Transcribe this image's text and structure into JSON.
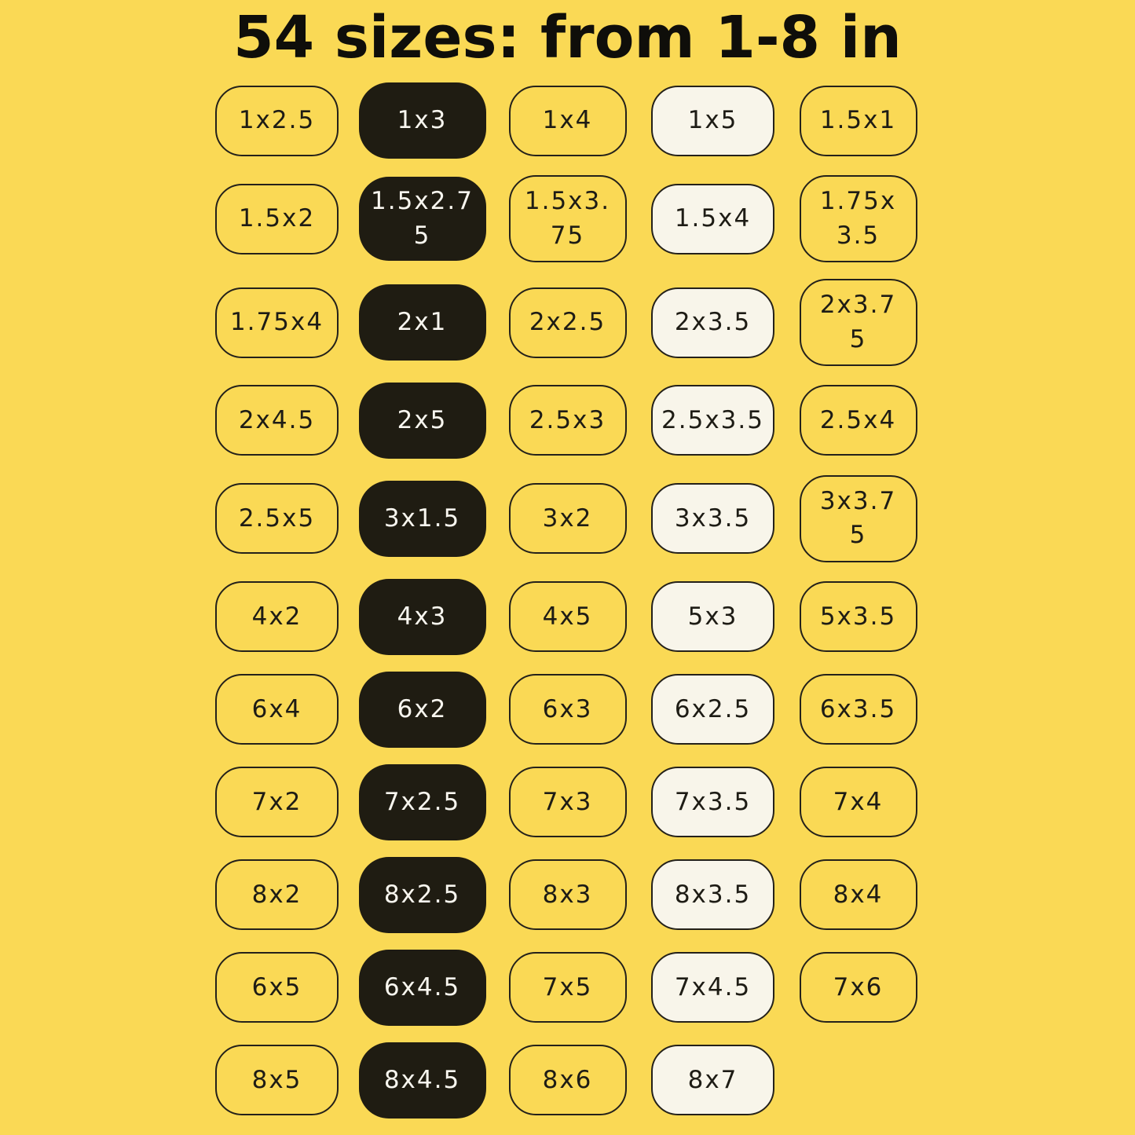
{
  "title": "54 sizes: from 1-8 in",
  "unit": "in",
  "size_range": "1-8",
  "total_sizes": 54,
  "colors": {
    "background": "#FAD955",
    "title_text": "#0F0E0A",
    "label_text": "#1E1C15",
    "outline_border": "#24211A",
    "dark_fill": "#1F1C12",
    "dark_text": "#F8F6EF",
    "cream_fill": "#F8F5EA"
  },
  "sizes_grid": {
    "rows": [
      {
        "cells": [
          {
            "label": "1x2.5",
            "style": "outline"
          },
          {
            "label": "1x3",
            "style": "dark"
          },
          {
            "label": "1x4",
            "style": "outline"
          },
          {
            "label": "1x5",
            "style": "cream"
          },
          {
            "label": "1.5x1",
            "style": "outline"
          }
        ]
      },
      {
        "cells": [
          {
            "label": "1.5x2",
            "style": "outline"
          },
          {
            "label": "1.5x2.75",
            "style": "dark"
          },
          {
            "label": "1.5x3.75",
            "style": "outline"
          },
          {
            "label": "1.5x4",
            "style": "cream"
          },
          {
            "label": "1.75x3.5",
            "style": "outline"
          }
        ]
      },
      {
        "cells": [
          {
            "label": "1.75x4",
            "style": "outline"
          },
          {
            "label": "2x1",
            "style": "dark"
          },
          {
            "label": "2x2.5",
            "style": "outline"
          },
          {
            "label": "2x3.5",
            "style": "cream"
          },
          {
            "label": "2x3.75",
            "style": "outline"
          }
        ]
      },
      {
        "cells": [
          {
            "label": "2x4.5",
            "style": "outline"
          },
          {
            "label": "2x5",
            "style": "dark"
          },
          {
            "label": "2.5x3",
            "style": "outline"
          },
          {
            "label": "2.5x3.5",
            "style": "cream"
          },
          {
            "label": "2.5x4",
            "style": "outline"
          }
        ]
      },
      {
        "cells": [
          {
            "label": "2.5x5",
            "style": "outline"
          },
          {
            "label": "3x1.5",
            "style": "dark"
          },
          {
            "label": "3x2",
            "style": "outline"
          },
          {
            "label": "3x3.5",
            "style": "cream"
          },
          {
            "label": "3x3.75",
            "style": "outline"
          }
        ]
      },
      {
        "cells": [
          {
            "label": "4x2",
            "style": "outline"
          },
          {
            "label": "4x3",
            "style": "dark"
          },
          {
            "label": "4x5",
            "style": "outline"
          },
          {
            "label": "5x3",
            "style": "cream"
          },
          {
            "label": "5x3.5",
            "style": "outline"
          }
        ]
      },
      {
        "cells": [
          {
            "label": "6x4",
            "style": "outline"
          },
          {
            "label": "6x2",
            "style": "dark"
          },
          {
            "label": "6x3",
            "style": "outline"
          },
          {
            "label": "6x2.5",
            "style": "cream"
          },
          {
            "label": "6x3.5",
            "style": "outline"
          }
        ]
      },
      {
        "cells": [
          {
            "label": "7x2",
            "style": "outline"
          },
          {
            "label": "7x2.5",
            "style": "dark"
          },
          {
            "label": "7x3",
            "style": "outline"
          },
          {
            "label": "7x3.5",
            "style": "cream"
          },
          {
            "label": "7x4",
            "style": "outline"
          }
        ]
      },
      {
        "cells": [
          {
            "label": "8x2",
            "style": "outline"
          },
          {
            "label": "8x2.5",
            "style": "dark"
          },
          {
            "label": "8x3",
            "style": "outline"
          },
          {
            "label": "8x3.5",
            "style": "cream"
          },
          {
            "label": "8x4",
            "style": "outline"
          }
        ]
      },
      {
        "cells": [
          {
            "label": "6x5",
            "style": "outline"
          },
          {
            "label": "6x4.5",
            "style": "dark"
          },
          {
            "label": "7x5",
            "style": "outline"
          },
          {
            "label": "7x4.5",
            "style": "cream"
          },
          {
            "label": "7x6",
            "style": "outline"
          }
        ]
      },
      {
        "cells": [
          {
            "label": "8x5",
            "style": "outline"
          },
          {
            "label": "8x4.5",
            "style": "dark"
          },
          {
            "label": "8x6",
            "style": "outline"
          },
          {
            "label": "8x7",
            "style": "cream"
          }
        ]
      }
    ]
  }
}
